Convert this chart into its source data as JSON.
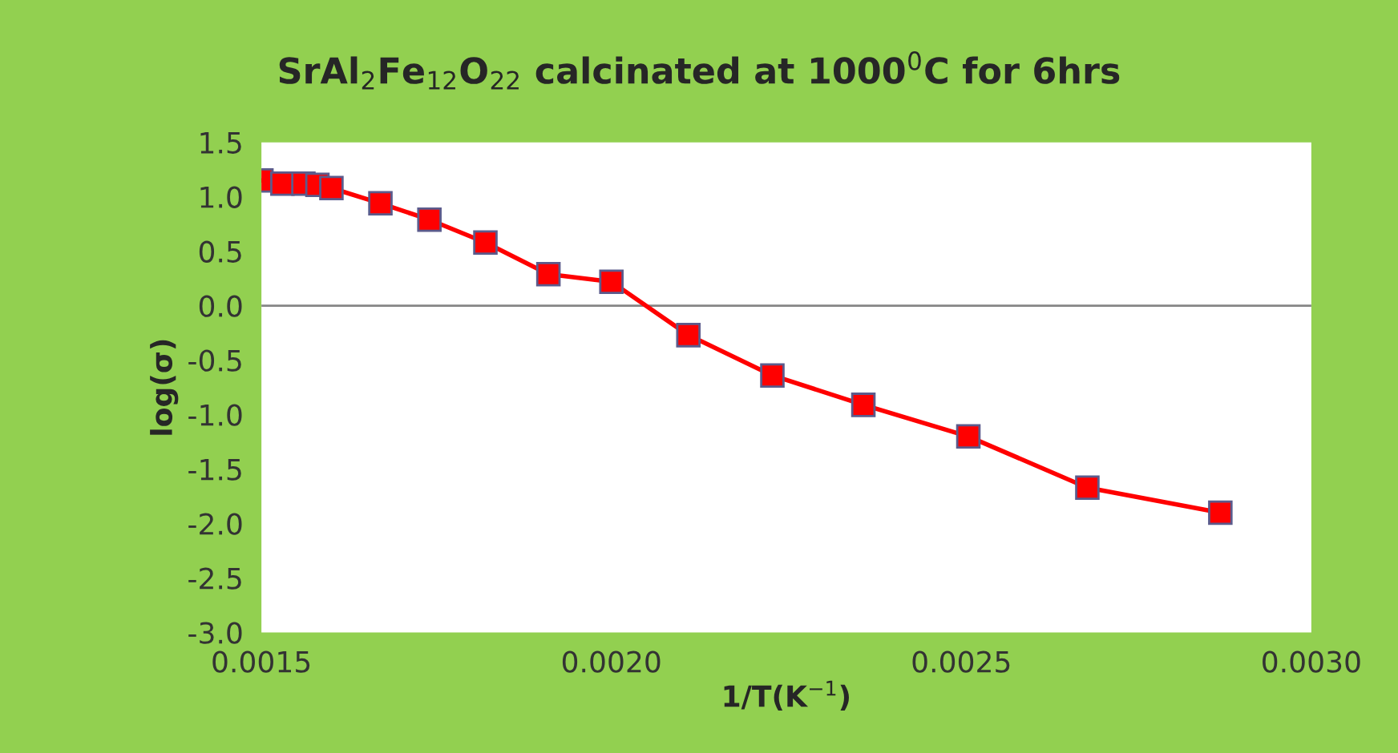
{
  "chart_data": {
    "type": "line",
    "title": "SrAl$_{2}$Fe$_{12}$O$_{22}$ calcinated at 1000$^{0}$C for 6hrs",
    "xlabel": "1/T(K$^{−1}$)",
    "ylabel": "log(σ)",
    "series": [
      {
        "color": "#ff0000",
        "x": [
          0.0015,
          0.00153,
          0.00156,
          0.00158,
          0.0016,
          0.00167,
          0.00174,
          0.00182,
          0.00191,
          0.002,
          0.00211,
          0.00223,
          0.00236,
          0.00251,
          0.00268,
          0.00287
        ],
        "values": [
          1.15,
          1.12,
          1.12,
          1.11,
          1.08,
          0.94,
          0.79,
          0.58,
          0.29,
          0.22,
          -0.27,
          -0.64,
          -0.91,
          -1.2,
          -1.67,
          -1.9
        ]
      }
    ],
    "marker": "square",
    "line_style": "solid",
    "grid": false,
    "legend": false,
    "xlim": [
      0.0015,
      0.003
    ],
    "xticks": [
      {
        "value": 0.0015,
        "label": "0.0015"
      },
      {
        "value": 0.002,
        "label": "0.0020"
      },
      {
        "value": 0.0025,
        "label": "0.0025"
      },
      {
        "value": 0.003,
        "label": "0.0030"
      }
    ],
    "ylim": [
      -3.0,
      1.5
    ],
    "yticks": [
      {
        "value": -3.0,
        "label": "-3.0"
      },
      {
        "value": -2.5,
        "label": "-2.5"
      },
      {
        "value": -2.0,
        "label": "-2.0"
      },
      {
        "value": -1.5,
        "label": "-1.5"
      },
      {
        "value": -1.0,
        "label": "-1.0"
      },
      {
        "value": -0.5,
        "label": "-0.5"
      },
      {
        "value": 0.0,
        "label": "0.0"
      },
      {
        "value": 0.5,
        "label": "0.5"
      },
      {
        "value": 1.0,
        "label": "1.0"
      },
      {
        "value": 1.5,
        "label": "1.5"
      }
    ],
    "ref_lines": [
      {
        "axis": "y",
        "value": 0,
        "color": "#868686"
      }
    ]
  }
}
